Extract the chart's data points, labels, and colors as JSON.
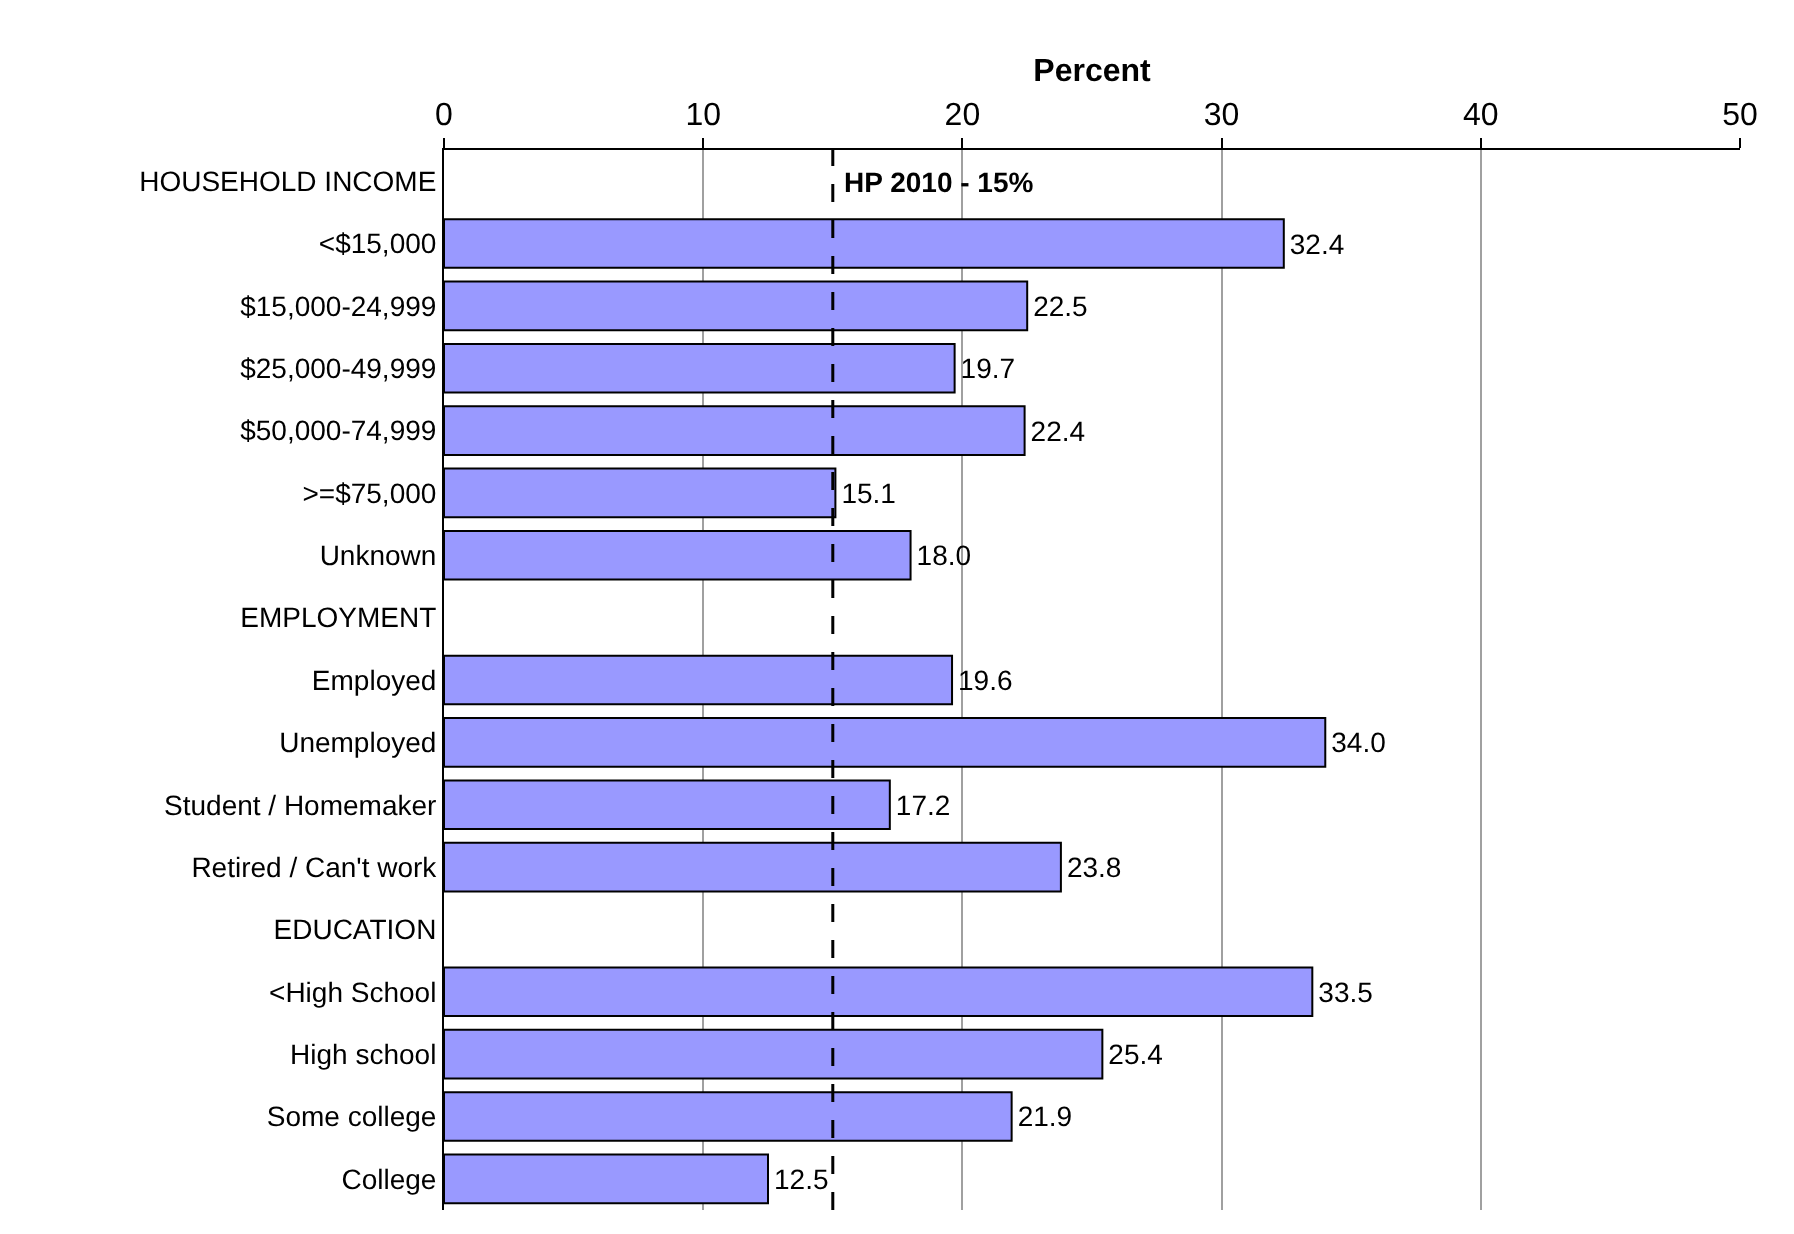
{
  "chart_data": {
    "type": "bar",
    "orientation": "horizontal",
    "xlabel": "Percent",
    "categories": [
      "HOUSEHOLD INCOME",
      "<$15,000",
      "$15,000-24,999",
      "$25,000-49,999",
      "$50,000-74,999",
      ">=$75,000",
      "Unknown",
      "EMPLOYMENT",
      "Employed",
      "Unemployed",
      "Student / Homemaker",
      "Retired / Can't work",
      "EDUCATION",
      "<High School",
      "High school",
      "Some college",
      "College"
    ],
    "values": [
      null,
      32.4,
      22.5,
      19.7,
      22.4,
      15.1,
      18.0,
      null,
      19.6,
      34.0,
      17.2,
      23.8,
      null,
      33.5,
      25.4,
      21.9,
      12.5
    ],
    "value_labels": [
      null,
      "32.4",
      "22.5",
      "19.7",
      "22.4",
      "15.1",
      "18.0",
      null,
      "19.6",
      "34.0",
      "17.2",
      "23.8",
      null,
      "33.5",
      "25.4",
      "21.9",
      "12.5"
    ],
    "color": "#9999ff",
    "xlim": [
      0,
      50
    ],
    "xticks": [
      0,
      10,
      20,
      30,
      40,
      50
    ],
    "grid": "x",
    "legend": false,
    "ref_lines": [
      {
        "axis": "x",
        "value": 15,
        "label": "HP 2010 - 15%",
        "line_style": "dashed",
        "color": "#000000"
      }
    ]
  }
}
